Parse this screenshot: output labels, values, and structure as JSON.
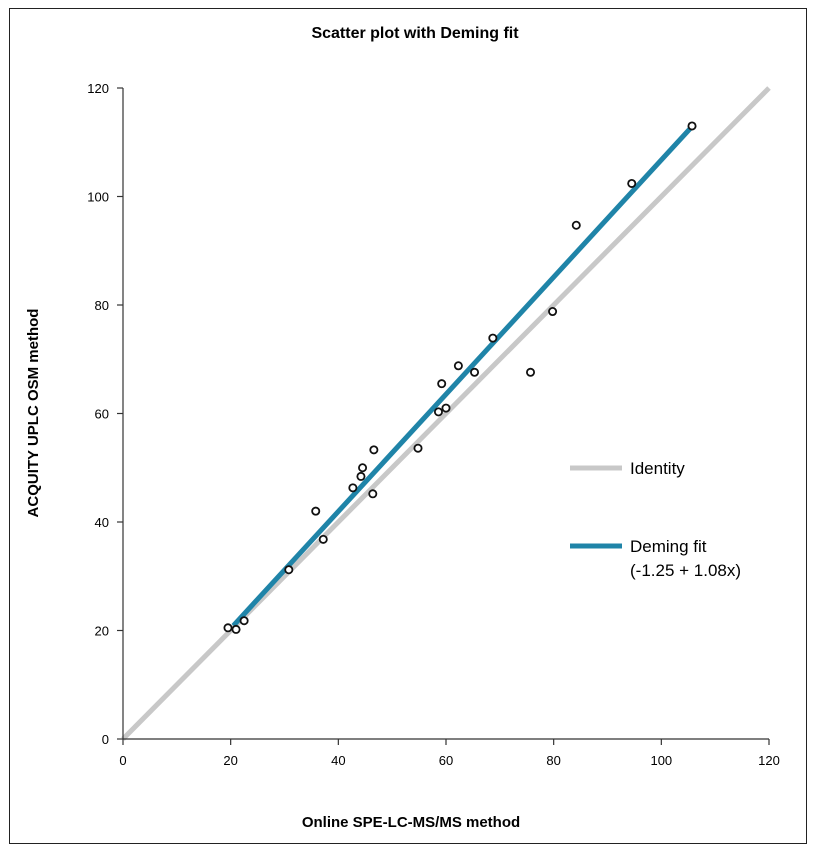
{
  "chart_data": {
    "type": "scatter",
    "title": "Scatter plot with Deming fit",
    "xlabel": "Online SPE-LC-MS/MS method",
    "ylabel": "ACQUITY UPLC OSM method",
    "xlim": [
      0,
      120
    ],
    "ylim": [
      0,
      120
    ],
    "xticks": [
      0,
      20,
      40,
      60,
      80,
      100,
      120
    ],
    "yticks": [
      0,
      20,
      40,
      60,
      80,
      100,
      120
    ],
    "grid": false,
    "legend_position": "right",
    "points": [
      {
        "x": 19.5,
        "y": 20.5
      },
      {
        "x": 21.0,
        "y": 20.2
      },
      {
        "x": 22.5,
        "y": 21.8
      },
      {
        "x": 30.8,
        "y": 31.2
      },
      {
        "x": 35.8,
        "y": 42.0
      },
      {
        "x": 37.2,
        "y": 36.8
      },
      {
        "x": 42.7,
        "y": 46.3
      },
      {
        "x": 44.2,
        "y": 48.4
      },
      {
        "x": 44.5,
        "y": 50.0
      },
      {
        "x": 46.4,
        "y": 45.2
      },
      {
        "x": 46.6,
        "y": 53.3
      },
      {
        "x": 54.8,
        "y": 53.6
      },
      {
        "x": 58.6,
        "y": 60.3
      },
      {
        "x": 59.2,
        "y": 65.5
      },
      {
        "x": 60.0,
        "y": 61.0
      },
      {
        "x": 62.3,
        "y": 68.8
      },
      {
        "x": 65.3,
        "y": 67.6
      },
      {
        "x": 68.7,
        "y": 73.9
      },
      {
        "x": 75.7,
        "y": 67.6
      },
      {
        "x": 79.8,
        "y": 78.8
      },
      {
        "x": 84.2,
        "y": 94.7
      },
      {
        "x": 94.5,
        "y": 102.4
      },
      {
        "x": 105.7,
        "y": 113.0
      }
    ],
    "series": [
      {
        "name": "Identity",
        "color": "#c8c8c8",
        "x": [
          0,
          120
        ],
        "y": [
          0,
          120
        ]
      },
      {
        "name": "Deming fit",
        "label_line2": "(-1.25 + 1.08x)",
        "color": "#1f84a8",
        "x": [
          20.5,
          105.7
        ],
        "y": [
          20.89,
          112.9
        ]
      }
    ]
  }
}
